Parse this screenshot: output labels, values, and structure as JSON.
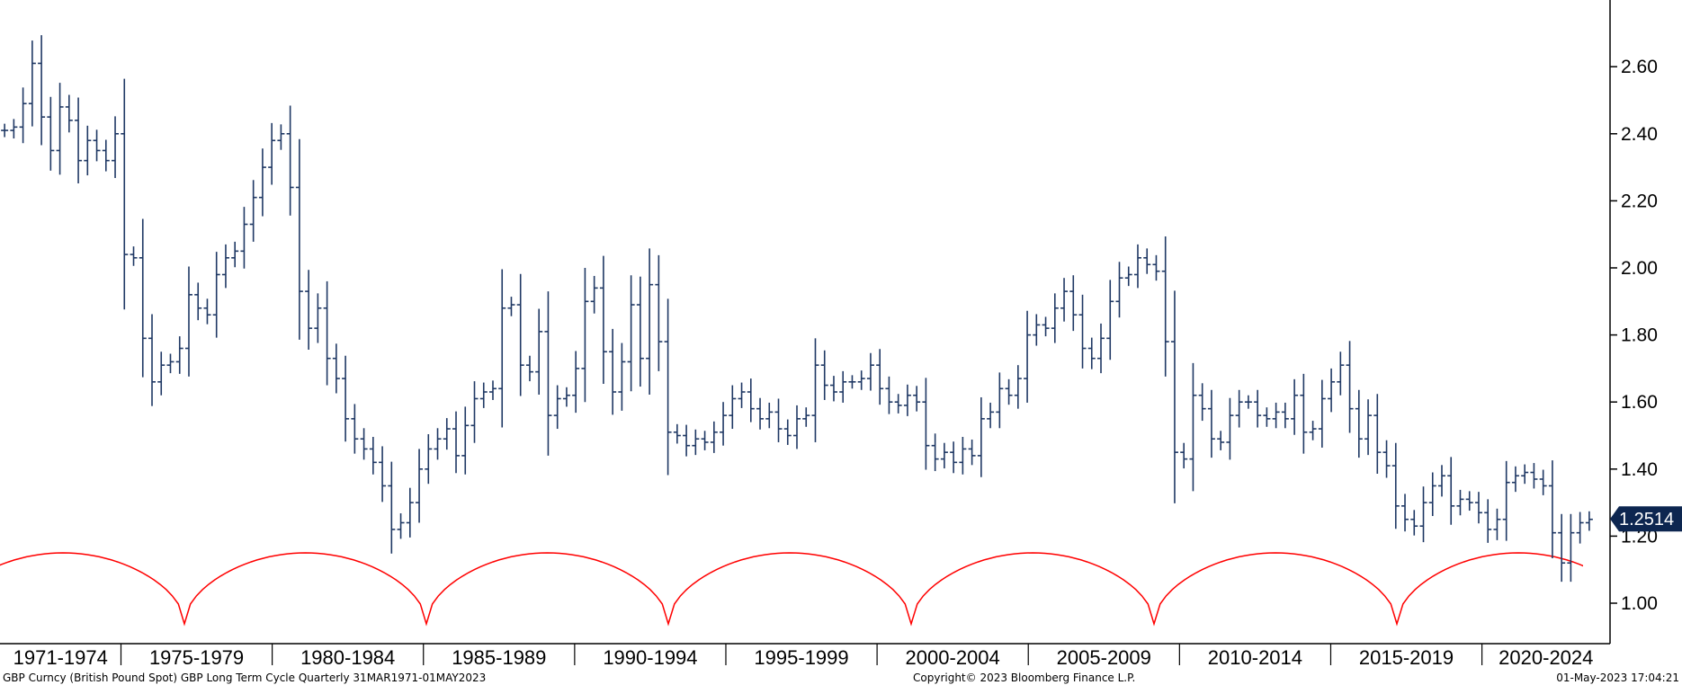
{
  "colors": {
    "bars": "#1f3864",
    "cycle": "#ff0000",
    "axis": "#000000",
    "last_badge": "#0d2650"
  },
  "chart_data": {
    "type": "ohlc",
    "series_name": "",
    "ylim": [
      0.88,
      2.8
    ],
    "y_ticks": [
      "1.00",
      "1.20",
      "1.40",
      "1.60",
      "1.80",
      "2.00",
      "2.20",
      "2.40",
      "2.60"
    ],
    "y_tick_values": [
      1.0,
      1.2,
      1.4,
      1.6,
      1.8,
      2.0,
      2.2,
      2.4,
      2.6
    ],
    "x_range": [
      1971.0,
      2023.7
    ],
    "periods": [
      "1971-1974",
      "1975-1979",
      "1980-1984",
      "1985-1989",
      "1990-1994",
      "1995-1999",
      "2000-2004",
      "2005-2009",
      "2010-2014",
      "2015-2019",
      "2020-2024"
    ],
    "period_starts": [
      1971,
      1975,
      1980,
      1985,
      1990,
      1995,
      2000,
      2005,
      2010,
      2015,
      2020
    ],
    "period_end": 2025,
    "last_value": "1.2514",
    "close_values": [
      2.41,
      2.42,
      2.49,
      2.61,
      2.45,
      2.35,
      2.48,
      2.44,
      2.32,
      2.38,
      2.35,
      2.32,
      2.4,
      2.04,
      2.03,
      1.79,
      1.66,
      1.71,
      1.72,
      1.76,
      1.92,
      1.88,
      1.86,
      1.98,
      2.03,
      2.05,
      2.13,
      2.21,
      2.3,
      2.38,
      2.4,
      2.24,
      1.93,
      1.82,
      1.88,
      1.73,
      1.67,
      1.55,
      1.49,
      1.46,
      1.42,
      1.35,
      1.22,
      1.24,
      1.3,
      1.4,
      1.46,
      1.49,
      1.52,
      1.44,
      1.53,
      1.61,
      1.63,
      1.64,
      1.88,
      1.89,
      1.71,
      1.69,
      1.81,
      1.56,
      1.61,
      1.62,
      1.7,
      1.9,
      1.94,
      1.75,
      1.63,
      1.72,
      1.89,
      1.73,
      1.95,
      1.78,
      1.51,
      1.5,
      1.47,
      1.49,
      1.48,
      1.51,
      1.56,
      1.61,
      1.63,
      1.58,
      1.55,
      1.57,
      1.52,
      1.5,
      1.55,
      1.56,
      1.71,
      1.65,
      1.63,
      1.66,
      1.66,
      1.67,
      1.71,
      1.64,
      1.6,
      1.59,
      1.62,
      1.6,
      1.47,
      1.43,
      1.45,
      1.42,
      1.46,
      1.44,
      1.55,
      1.57,
      1.64,
      1.62,
      1.67,
      1.8,
      1.83,
      1.82,
      1.88,
      1.93,
      1.86,
      1.76,
      1.73,
      1.79,
      1.9,
      1.97,
      1.98,
      2.03,
      2.01,
      1.99,
      1.78,
      1.45,
      1.43,
      1.62,
      1.58,
      1.49,
      1.48,
      1.56,
      1.6,
      1.6,
      1.56,
      1.55,
      1.57,
      1.55,
      1.62,
      1.51,
      1.52,
      1.61,
      1.66,
      1.71,
      1.58,
      1.49,
      1.56,
      1.45,
      1.41,
      1.29,
      1.25,
      1.23,
      1.3,
      1.35,
      1.38,
      1.29,
      1.31,
      1.3,
      1.27,
      1.22,
      1.25,
      1.36,
      1.38,
      1.39,
      1.37,
      1.35,
      1.21,
      1.12,
      1.21,
      1.24,
      1.25
    ]
  },
  "footer": {
    "left": "GBP Curncy (British Pound Spot) GBP Long Term Cycle  Quarterly 31MAR1971-01MAY2023",
    "center": "Copyright© 2023 Bloomberg Finance L.P.",
    "right": "01-May-2023 17:04:21"
  }
}
